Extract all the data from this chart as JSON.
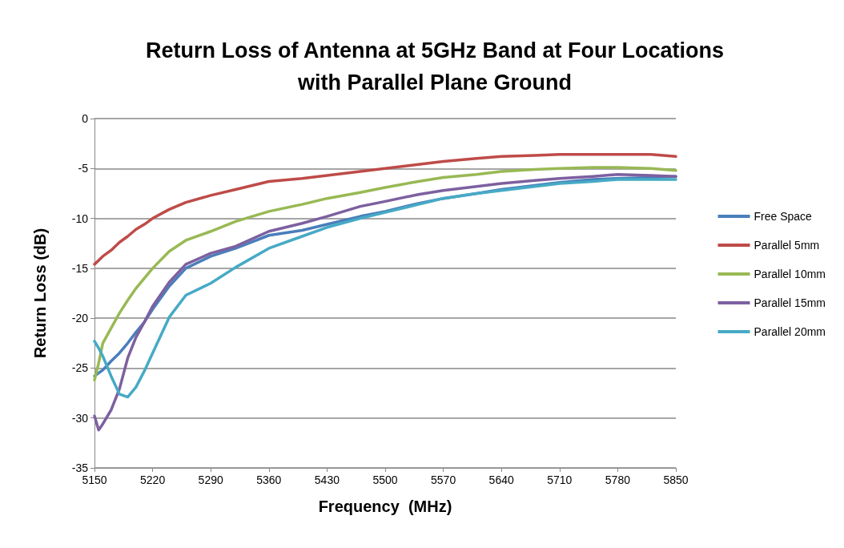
{
  "chart_data": {
    "type": "line",
    "title": "Return Loss of Antenna at 5GHz Band at Four Locations\nwith Parallel Plane Ground",
    "xlabel": "Frequency  (MHz)",
    "ylabel": "Return Loss (dB)",
    "x": [
      5150,
      5155,
      5160,
      5170,
      5180,
      5190,
      5200,
      5210,
      5220,
      5240,
      5260,
      5290,
      5320,
      5360,
      5400,
      5430,
      5470,
      5500,
      5540,
      5570,
      5610,
      5640,
      5680,
      5710,
      5750,
      5780,
      5820,
      5850
    ],
    "series": [
      {
        "name": "Free Space",
        "color": "#4a7ebb",
        "values": [
          -25.8,
          -25.5,
          -25.2,
          -24.3,
          -23.5,
          -22.5,
          -21.4,
          -20.4,
          -19.1,
          -16.8,
          -15.0,
          -13.8,
          -13.0,
          -11.7,
          -11.2,
          -10.6,
          -9.8,
          -9.3,
          -8.5,
          -8.0,
          -7.5,
          -7.1,
          -6.7,
          -6.4,
          -6.1,
          -6.0,
          -5.9,
          -5.8
        ]
      },
      {
        "name": "Parallel 5mm",
        "color": "#be4b48",
        "values": [
          -14.6,
          -14.2,
          -13.8,
          -13.2,
          -12.4,
          -11.8,
          -11.1,
          -10.6,
          -10.0,
          -9.1,
          -8.4,
          -7.7,
          -7.1,
          -6.3,
          -6.0,
          -5.7,
          -5.3,
          -5.0,
          -4.6,
          -4.3,
          -4.0,
          -3.8,
          -3.7,
          -3.6,
          -3.6,
          -3.6,
          -3.6,
          -3.8
        ]
      },
      {
        "name": "Parallel 10mm",
        "color": "#98b954",
        "values": [
          -26.2,
          -24.5,
          -22.5,
          -21.0,
          -19.5,
          -18.2,
          -17.0,
          -16.0,
          -15.0,
          -13.3,
          -12.2,
          -11.3,
          -10.3,
          -9.3,
          -8.6,
          -8.0,
          -7.4,
          -6.9,
          -6.3,
          -5.9,
          -5.6,
          -5.3,
          -5.1,
          -5.0,
          -4.9,
          -4.9,
          -5.0,
          -5.2
        ]
      },
      {
        "name": "Parallel 15mm",
        "color": "#7d60a0",
        "values": [
          -29.8,
          -31.2,
          -30.6,
          -29.2,
          -27.1,
          -24.0,
          -21.9,
          -20.4,
          -18.8,
          -16.4,
          -14.6,
          -13.5,
          -12.8,
          -11.3,
          -10.5,
          -9.8,
          -8.8,
          -8.3,
          -7.6,
          -7.2,
          -6.8,
          -6.5,
          -6.2,
          -6.0,
          -5.8,
          -5.6,
          -5.7,
          -5.8
        ]
      },
      {
        "name": "Parallel 20mm",
        "color": "#46aac5",
        "values": [
          -22.3,
          -23.0,
          -23.8,
          -25.8,
          -27.6,
          -27.9,
          -26.9,
          -25.3,
          -23.5,
          -19.9,
          -17.7,
          -16.5,
          -14.9,
          -13.0,
          -11.8,
          -10.9,
          -10.0,
          -9.4,
          -8.6,
          -8.0,
          -7.5,
          -7.2,
          -6.8,
          -6.5,
          -6.3,
          -6.1,
          -6.1,
          -6.1
        ]
      }
    ],
    "xlim": [
      5150,
      5850
    ],
    "xticks": [
      5150,
      5220,
      5290,
      5360,
      5430,
      5500,
      5570,
      5640,
      5710,
      5780,
      5850
    ],
    "ylim": [
      -35,
      0
    ],
    "yticks": [
      -35,
      -30,
      -25,
      -20,
      -15,
      -10,
      -5,
      0
    ],
    "grid": "y",
    "legend": "right",
    "marker": "none",
    "line_style": "solid"
  }
}
